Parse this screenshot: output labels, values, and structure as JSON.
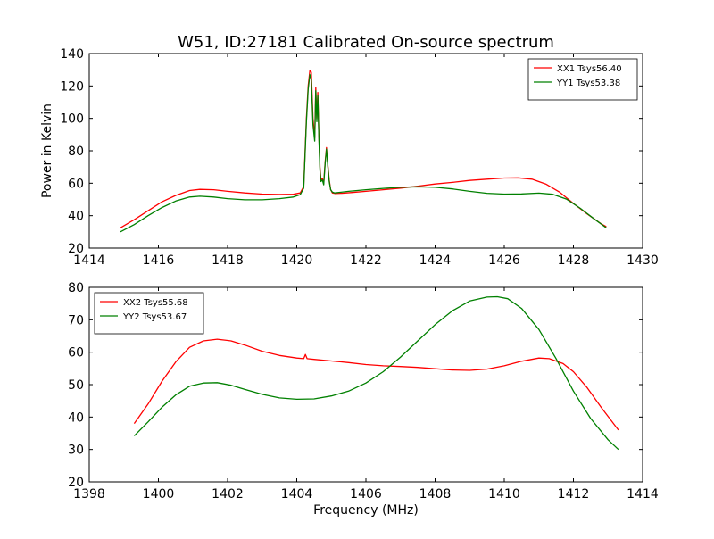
{
  "figure": {
    "title": "W51, ID:27181 Calibrated On-source spectrum",
    "ylabel": "Power in Kelvin",
    "xlabel": "Frequency (MHz)"
  },
  "chart_data": [
    {
      "type": "line",
      "title": "W51, ID:27181 Calibrated On-source spectrum",
      "xlabel": "",
      "ylabel": "Power in Kelvin",
      "xlim": [
        1414,
        1430
      ],
      "ylim": [
        20,
        140
      ],
      "xticks": [
        1414,
        1416,
        1418,
        1420,
        1422,
        1424,
        1426,
        1428,
        1430
      ],
      "yticks": [
        20,
        40,
        60,
        80,
        100,
        120,
        140
      ],
      "grid": false,
      "legend_position": "top-right",
      "series": [
        {
          "name": "XX1 Tsys56.40",
          "color": "#ff0000",
          "x": [
            1414.9,
            1415.3,
            1415.7,
            1416.1,
            1416.5,
            1416.9,
            1417.2,
            1417.6,
            1418.0,
            1418.5,
            1419.0,
            1419.5,
            1419.9,
            1420.1,
            1420.2,
            1420.28,
            1420.33,
            1420.38,
            1420.42,
            1420.47,
            1420.52,
            1420.55,
            1420.58,
            1420.61,
            1420.64,
            1420.67,
            1420.7,
            1420.74,
            1420.78,
            1420.82,
            1420.86,
            1420.9,
            1420.94,
            1420.98,
            1421.03,
            1421.1,
            1421.3,
            1421.6,
            1422.0,
            1422.5,
            1423.0,
            1423.5,
            1424.0,
            1424.5,
            1425.0,
            1425.5,
            1426.0,
            1426.4,
            1426.8,
            1427.2,
            1427.6,
            1428.0,
            1428.4,
            1428.8,
            1428.95
          ],
          "y": [
            32.5,
            37.5,
            43,
            48.5,
            52.5,
            55.5,
            56.2,
            56,
            55,
            54,
            53.3,
            53.1,
            53.2,
            54,
            58,
            100,
            120,
            129.5,
            128.5,
            100,
            88,
            119,
            100,
            116,
            90,
            70,
            62,
            63,
            60,
            73,
            82,
            71,
            62,
            56,
            54,
            53.7,
            53.8,
            54.3,
            55,
            56,
            57,
            58.2,
            59.5,
            60.5,
            61.7,
            62.5,
            63.2,
            63.3,
            62.5,
            59.5,
            54.5,
            47.5,
            41,
            35,
            33.2
          ]
        },
        {
          "name": "YY1 Tsys53.38",
          "color": "#008000",
          "x": [
            1414.9,
            1415.3,
            1415.7,
            1416.1,
            1416.5,
            1416.9,
            1417.2,
            1417.6,
            1418.0,
            1418.5,
            1419.0,
            1419.5,
            1419.9,
            1420.1,
            1420.2,
            1420.28,
            1420.33,
            1420.38,
            1420.42,
            1420.47,
            1420.52,
            1420.55,
            1420.58,
            1420.61,
            1420.64,
            1420.67,
            1420.7,
            1420.74,
            1420.78,
            1420.82,
            1420.86,
            1420.9,
            1420.94,
            1420.98,
            1421.03,
            1421.1,
            1421.5,
            1422.0,
            1422.5,
            1423.0,
            1423.5,
            1424.0,
            1424.5,
            1425.0,
            1425.5,
            1426.0,
            1426.5,
            1427.0,
            1427.4,
            1427.8,
            1428.2,
            1428.6,
            1428.95
          ],
          "y": [
            30,
            34.5,
            40,
            45,
            49,
            51.5,
            52,
            51.5,
            50.5,
            49.8,
            49.8,
            50.5,
            51.5,
            53,
            57,
            98,
            118,
            127,
            124,
            96,
            86,
            117,
            98,
            114,
            88,
            68,
            61,
            62,
            59,
            72,
            81,
            70,
            61,
            56,
            54.5,
            54,
            55,
            56,
            56.8,
            57.5,
            57.8,
            57.5,
            56.5,
            55,
            53.8,
            53.3,
            53.4,
            53.9,
            53.2,
            50.2,
            44.5,
            38,
            32.5
          ]
        }
      ]
    },
    {
      "type": "line",
      "title": "",
      "xlabel": "Frequency (MHz)",
      "ylabel": "",
      "xlim": [
        1398,
        1414
      ],
      "ylim": [
        20,
        80
      ],
      "xticks": [
        1398,
        1400,
        1402,
        1404,
        1406,
        1408,
        1410,
        1412,
        1414
      ],
      "yticks": [
        20,
        30,
        40,
        50,
        60,
        70,
        80
      ],
      "grid": false,
      "legend_position": "top-left",
      "series": [
        {
          "name": "XX2 Tsys55.68",
          "color": "#ff0000",
          "x": [
            1399.3,
            1399.7,
            1400.1,
            1400.5,
            1400.9,
            1401.3,
            1401.7,
            1402.1,
            1402.5,
            1403.0,
            1403.5,
            1404.0,
            1404.2,
            1404.25,
            1404.3,
            1404.5,
            1405.0,
            1405.5,
            1406.0,
            1406.5,
            1407.0,
            1407.5,
            1408.0,
            1408.5,
            1409.0,
            1409.5,
            1410.0,
            1410.5,
            1411.0,
            1411.3,
            1411.7,
            1412.0,
            1412.4,
            1412.8,
            1413.3
          ],
          "y": [
            38,
            44,
            51,
            57,
            61.5,
            63.5,
            64,
            63.5,
            62.2,
            60.3,
            59,
            58.2,
            58,
            59.3,
            58,
            57.8,
            57.3,
            56.8,
            56.2,
            55.8,
            55.6,
            55.3,
            54.9,
            54.5,
            54.4,
            54.8,
            55.8,
            57.2,
            58.2,
            58,
            56.5,
            54,
            49,
            43,
            36
          ]
        },
        {
          "name": "YY2 Tsys53.67",
          "color": "#008000",
          "x": [
            1399.3,
            1399.7,
            1400.1,
            1400.5,
            1400.9,
            1401.3,
            1401.7,
            1402.1,
            1402.5,
            1403.0,
            1403.5,
            1404.0,
            1404.5,
            1405.0,
            1405.5,
            1406.0,
            1406.5,
            1407.0,
            1407.5,
            1408.0,
            1408.5,
            1409.0,
            1409.5,
            1409.8,
            1410.1,
            1410.5,
            1411.0,
            1411.5,
            1412.0,
            1412.5,
            1413.0,
            1413.3
          ],
          "y": [
            34.2,
            38.5,
            43,
            46.8,
            49.5,
            50.5,
            50.6,
            49.8,
            48.5,
            47,
            45.9,
            45.5,
            45.6,
            46.5,
            48,
            50.5,
            54,
            58.5,
            63.5,
            68.5,
            72.8,
            75.8,
            77,
            77.1,
            76.5,
            73.5,
            67,
            58,
            48,
            39.5,
            33,
            30
          ]
        }
      ]
    }
  ]
}
